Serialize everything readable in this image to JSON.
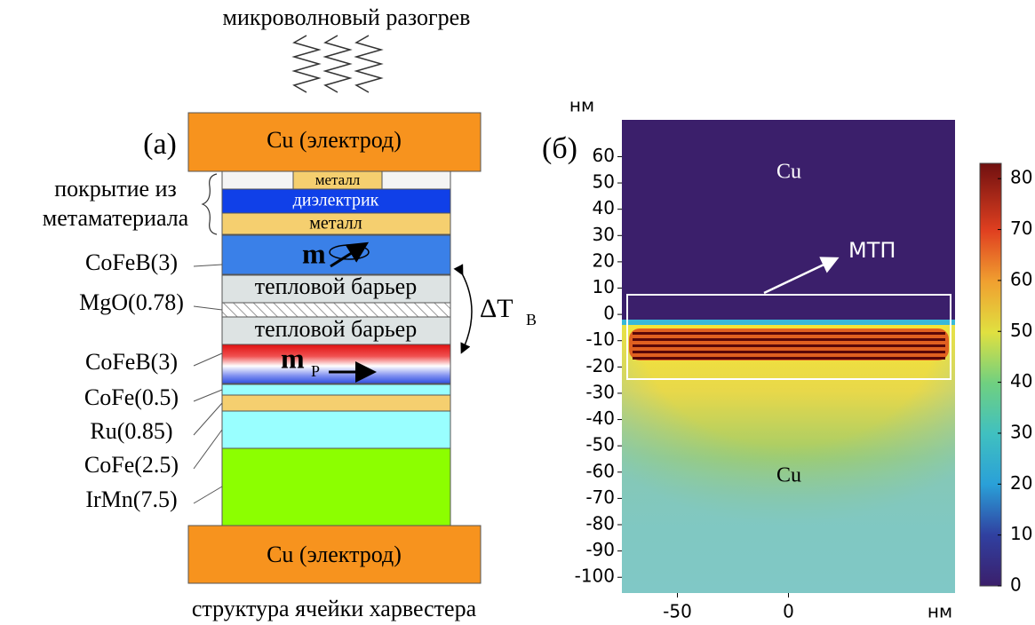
{
  "panel_a": {
    "label": "(а)",
    "top_caption": "микроволновый разогрев",
    "bottom_caption": "структура ячейки харвестера",
    "electrode_top": "Cu (электрод)",
    "electrode_bottom": "Cu (электрод)",
    "coating_label": [
      "покрытие из",
      "метаматериала"
    ],
    "layers_text": {
      "metal_top": "металл",
      "dielectric": "диэлектрик",
      "metal_bottom": "металл",
      "barrier_top": "тепловой барьер",
      "barrier_bottom": "тепловой барьер",
      "free_m": "m",
      "pinned_m": "m",
      "pinned_sub": "P"
    },
    "side_labels": [
      "CoFeB(3)",
      "MgO(0.78)",
      "CoFeB(3)",
      "CoFe(0.5)",
      "Ru(0.85)",
      "CoFe(2.5)",
      "IrMn(7.5)"
    ],
    "delta_t": {
      "symbol": "ΔT",
      "subscript": "B"
    }
  },
  "chart_data": {
    "type": "heatmap",
    "label": "(б)",
    "x_label": "нм",
    "y_label": "нм",
    "xlim": [
      -75,
      75
    ],
    "xticks": [
      -50,
      0
    ],
    "ylim": [
      -106,
      74
    ],
    "yticks": [
      -100,
      -90,
      -80,
      -70,
      -60,
      -50,
      -40,
      -30,
      -20,
      -10,
      0,
      10,
      20,
      30,
      40,
      50,
      60
    ],
    "annotation": "МТП",
    "region_labels": [
      "Cu",
      "Cu"
    ],
    "clim": [
      0,
      83
    ],
    "cticks": [
      0,
      10,
      20,
      30,
      40,
      50,
      60,
      70,
      80
    ]
  }
}
